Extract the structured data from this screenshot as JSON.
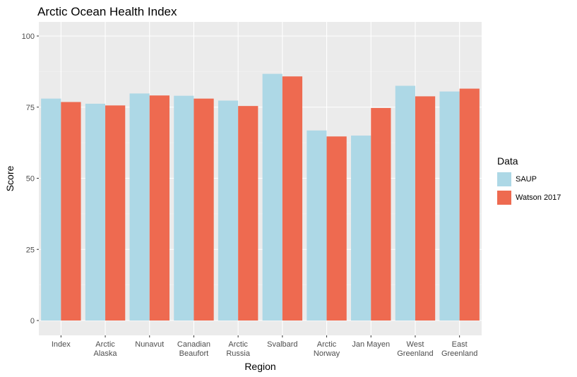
{
  "chart_data": {
    "type": "bar",
    "title": "Arctic Ocean Health Index",
    "xlabel": "Region",
    "ylabel": "Score",
    "ylim": [
      0,
      105
    ],
    "yticks": [
      0,
      25,
      50,
      75,
      100
    ],
    "grid": true,
    "legend_title": "Data",
    "legend_position": "right",
    "categories": [
      [
        "Index"
      ],
      [
        "Arctic",
        "Alaska"
      ],
      [
        "Nunavut"
      ],
      [
        "Canadian",
        "Beaufort"
      ],
      [
        "Arctic",
        "Russia"
      ],
      [
        "Svalbard"
      ],
      [
        "Arctic",
        "Norway"
      ],
      [
        "Jan Mayen"
      ],
      [
        "West",
        "Greenland"
      ],
      [
        "East",
        "Greenland"
      ]
    ],
    "series": [
      {
        "name": "SAUP",
        "color": "#add8e6",
        "values": [
          78,
          76.2,
          79.8,
          79,
          77.3,
          86.7,
          66.8,
          65,
          82.5,
          80.5
        ]
      },
      {
        "name": "Watson 2017",
        "color": "#ee6a50",
        "values": [
          76.8,
          75.6,
          79.1,
          78,
          75.4,
          85.8,
          64.7,
          74.7,
          78.8,
          81.5
        ]
      }
    ]
  }
}
